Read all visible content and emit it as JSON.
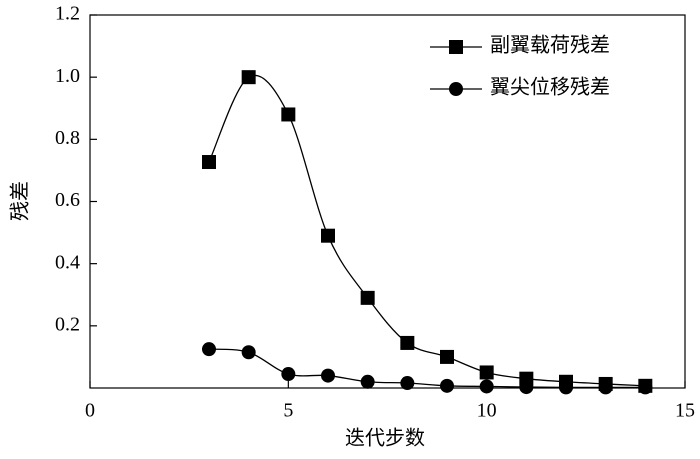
{
  "chart_data": {
    "type": "line",
    "x_label": "迭代步数",
    "y_label": "残差",
    "x": [
      3,
      4,
      5,
      6,
      7,
      8,
      9,
      10,
      11,
      12,
      13,
      14
    ],
    "series": [
      {
        "name": "副翼载荷残差",
        "color": "#000000",
        "marker": "square",
        "values": [
          0.727,
          1.0,
          0.88,
          0.49,
          0.29,
          0.145,
          0.1,
          0.05,
          0.03,
          0.02,
          0.013,
          0.007
        ]
      },
      {
        "name": "翼尖位移残差",
        "color": "#000000",
        "marker": "circle",
        "values": [
          0.125,
          0.115,
          0.045,
          0.04,
          0.02,
          0.016,
          0.007,
          0.005,
          0.003,
          0.002,
          0.002,
          0.002
        ]
      }
    ],
    "xlim": [
      0,
      15
    ],
    "xticks": [
      0,
      5,
      10,
      15
    ],
    "ylim": [
      0,
      1.2
    ],
    "yticks": [
      0.2,
      0.4,
      0.6,
      0.8,
      {
        "value": 1,
        "label": "1.0"
      },
      1.2
    ],
    "smooth": true,
    "legend": "upper right"
  }
}
